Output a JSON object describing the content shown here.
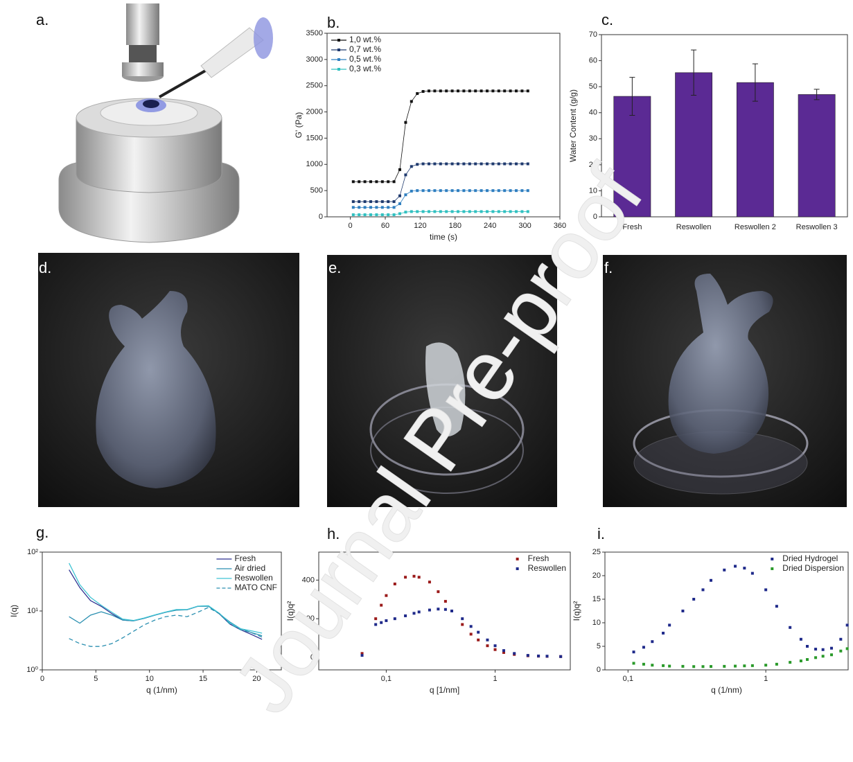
{
  "panel_labels": [
    "a.",
    "b.",
    "c.",
    "d.",
    "e.",
    "f.",
    "g.",
    "h.",
    "i."
  ],
  "watermark": "Journal Pre-proof",
  "chart_data": [
    {
      "type": "line",
      "markers": true,
      "xlabel": "time (s)",
      "ylabel": "G' (Pa)",
      "xlim": [
        -40,
        360
      ],
      "xticks": [
        0,
        60,
        120,
        180,
        240,
        300,
        360
      ],
      "ylim": [
        0,
        3500
      ],
      "yticks": [
        0,
        500,
        1000,
        1500,
        2000,
        2500,
        3000,
        3500
      ],
      "legend": "upper left",
      "x": [
        5,
        15,
        25,
        35,
        45,
        55,
        65,
        75,
        85,
        95,
        105,
        115,
        125,
        135,
        145,
        155,
        165,
        175,
        185,
        195,
        205,
        215,
        225,
        235,
        245,
        255,
        265,
        275,
        285,
        295,
        305
      ],
      "series": [
        {
          "name": "1,0 wt.%",
          "color": "#111111",
          "values": [
            670,
            670,
            670,
            670,
            670,
            670,
            670,
            670,
            900,
            1800,
            2200,
            2350,
            2390,
            2400,
            2400,
            2400,
            2400,
            2400,
            2400,
            2400,
            2400,
            2400,
            2400,
            2400,
            2400,
            2400,
            2400,
            2400,
            2400,
            2400,
            2400
          ]
        },
        {
          "name": "0,7 wt.%",
          "color": "#1f3a6e",
          "values": [
            290,
            290,
            290,
            290,
            290,
            290,
            290,
            290,
            400,
            800,
            960,
            1000,
            1010,
            1010,
            1010,
            1010,
            1010,
            1010,
            1010,
            1010,
            1010,
            1010,
            1010,
            1010,
            1010,
            1010,
            1010,
            1010,
            1010,
            1010,
            1010
          ]
        },
        {
          "name": "0,5 wt.%",
          "color": "#2f7fc0",
          "values": [
            180,
            180,
            180,
            180,
            180,
            180,
            180,
            180,
            250,
            420,
            490,
            500,
            500,
            500,
            500,
            500,
            500,
            500,
            500,
            500,
            500,
            500,
            500,
            500,
            500,
            500,
            500,
            500,
            500,
            500,
            500
          ]
        },
        {
          "name": "0,3 wt.%",
          "color": "#30c0c0",
          "values": [
            40,
            40,
            40,
            40,
            40,
            40,
            40,
            40,
            60,
            90,
            100,
            100,
            100,
            100,
            100,
            100,
            100,
            100,
            100,
            100,
            100,
            100,
            100,
            100,
            100,
            100,
            100,
            100,
            100,
            100,
            100
          ]
        }
      ]
    },
    {
      "type": "bar",
      "ylabel": "Water Content (g/g)",
      "color": "#5b2a94",
      "categories": [
        "Fresh",
        "Reswollen",
        "Reswollen 2",
        "Reswollen 3"
      ],
      "values": [
        46.3,
        55.4,
        51.6,
        47
      ],
      "errors": [
        7.3,
        8.7,
        7.2,
        2
      ],
      "ylim": [
        0,
        70
      ],
      "yticks": [
        0,
        10,
        20,
        30,
        40,
        50,
        60,
        70
      ]
    },
    {
      "type": "line",
      "markers": false,
      "xlabel": "q (1/nm)",
      "ylabel": "I(q)",
      "xlim": [
        0,
        22.3
      ],
      "xticks": [
        0,
        5,
        10,
        15,
        20
      ],
      "ylim": [
        1,
        100
      ],
      "ylog": true,
      "yticks": [
        {
          "value": 1,
          "label": "10⁰"
        },
        {
          "value": 10,
          "label": "10¹"
        },
        {
          "value": 100,
          "label": "10²"
        }
      ],
      "legend": "upper right",
      "x": [
        2.5,
        3.5,
        4.5,
        5.5,
        6.5,
        7.5,
        8.5,
        9.5,
        10.5,
        11.5,
        12.5,
        13.5,
        14.5,
        15.5,
        16.5,
        17.5,
        18.5,
        19.5,
        20.5
      ],
      "series": [
        {
          "name": "Fresh",
          "color": "#2b2f8f",
          "style": "solid",
          "values": [
            50,
            25,
            15,
            12,
            9,
            7,
            6.8,
            7.5,
            8.5,
            9.5,
            10.5,
            10.5,
            12,
            12.2,
            9,
            6,
            4.8,
            4,
            3.3
          ]
        },
        {
          "name": "Air dried",
          "color": "#2a8fb0",
          "style": "solid",
          "values": [
            8,
            6.2,
            8.5,
            9.7,
            8.5,
            7,
            6.8,
            7.5,
            8.5,
            9.5,
            10.3,
            10.5,
            12,
            12,
            9,
            6.5,
            5,
            4.3,
            3.8
          ]
        },
        {
          "name": "Reswollen",
          "color": "#40c4d4",
          "style": "solid",
          "values": [
            65,
            28,
            17,
            12.5,
            9.5,
            7.3,
            6.9,
            7.6,
            8.6,
            9.6,
            10.6,
            10.6,
            12.1,
            12.3,
            9.2,
            6.3,
            5,
            4.6,
            4.2
          ]
        },
        {
          "name": "MATO CNF",
          "color": "#2a8fb0",
          "style": "dashed",
          "values": [
            3.4,
            2.8,
            2.5,
            2.5,
            2.8,
            3.5,
            4.5,
            5.8,
            7,
            8,
            8.5,
            8,
            9.5,
            11.5,
            9,
            6,
            4.8,
            4.3,
            3.6
          ]
        }
      ]
    },
    {
      "type": "scatter",
      "xlabel": "q [1/nm]",
      "ylabel": "I(q)q²",
      "xlim": [
        0.024,
        4.9
      ],
      "xlog": true,
      "xticks": [
        {
          "value": 0.1,
          "label": "0,1"
        },
        1
      ],
      "ylim": [
        -65,
        545
      ],
      "yticks": [
        0,
        200,
        400
      ],
      "legend": "upper right",
      "x": [
        0.06,
        0.08,
        0.09,
        0.1,
        0.12,
        0.15,
        0.18,
        0.2,
        0.25,
        0.3,
        0.35,
        0.4,
        0.5,
        0.6,
        0.7,
        0.85,
        1,
        1.2,
        1.5,
        2,
        2.5,
        3,
        4
      ],
      "series": [
        {
          "name": "Fresh",
          "color": "#9b1b1b",
          "values": [
            20,
            200,
            270,
            320,
            380,
            415,
            420,
            415,
            390,
            340,
            290,
            240,
            170,
            120,
            90,
            60,
            40,
            25,
            15,
            8,
            6,
            5,
            4
          ]
        },
        {
          "name": "Reswollen",
          "color": "#1f2a8a",
          "values": [
            10,
            170,
            180,
            190,
            200,
            215,
            228,
            235,
            245,
            250,
            248,
            240,
            200,
            160,
            130,
            90,
            60,
            35,
            20,
            10,
            7,
            6,
            4
          ]
        }
      ]
    },
    {
      "type": "scatter",
      "xlabel": "q (1/nm)",
      "ylabel": "I(q)q²",
      "xlim": [
        0.068,
        3.96
      ],
      "xlog": true,
      "xticks": [
        {
          "value": 0.1,
          "label": "0,1"
        },
        1
      ],
      "ylim": [
        0,
        25
      ],
      "yticks": [
        0,
        5,
        10,
        15,
        20,
        25
      ],
      "legend": "upper right",
      "x": [
        0.11,
        0.13,
        0.15,
        0.18,
        0.2,
        0.25,
        0.3,
        0.35,
        0.4,
        0.5,
        0.6,
        0.7,
        0.8,
        1,
        1.2,
        1.5,
        1.8,
        2,
        2.3,
        2.6,
        3,
        3.5,
        3.9
      ],
      "series": [
        {
          "name": "Dried Hydrogel",
          "color": "#1f2a8a",
          "values": [
            3.8,
            4.8,
            6,
            7.8,
            9.5,
            12.5,
            15,
            17,
            19,
            21.2,
            22,
            21.6,
            20.5,
            17,
            13.5,
            9,
            6.5,
            5,
            4.4,
            4.3,
            4.6,
            6.5,
            9.5
          ]
        },
        {
          "name": "Dried Dispersion",
          "color": "#2a9a2a",
          "values": [
            1.4,
            1.2,
            1,
            0.9,
            0.8,
            0.75,
            0.7,
            0.7,
            0.72,
            0.75,
            0.8,
            0.85,
            0.9,
            1,
            1.2,
            1.6,
            1.9,
            2.2,
            2.6,
            2.9,
            3.2,
            4,
            4.5
          ]
        }
      ]
    }
  ]
}
